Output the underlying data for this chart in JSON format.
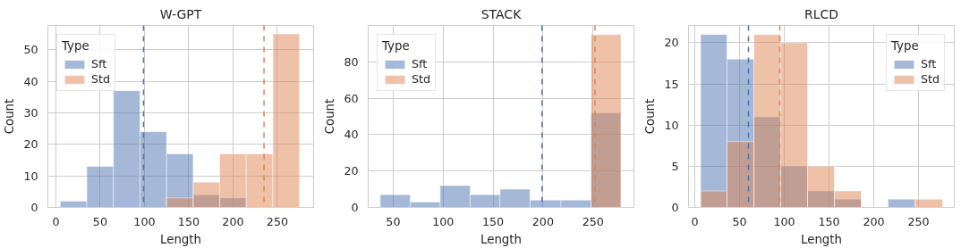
{
  "chart_data": [
    {
      "type": "histogram",
      "title": "W-GPT",
      "xlabel": "Length",
      "ylabel": "Count",
      "legend_title": "Type",
      "bins": [
        5,
        35,
        65,
        95,
        125,
        155,
        185,
        215,
        245,
        275
      ],
      "series": [
        {
          "name": "Sft",
          "color": "#4c72b0",
          "values": [
            2,
            13,
            37,
            24,
            17,
            4,
            3,
            0,
            0
          ]
        },
        {
          "name": "Std",
          "color": "#dd8452",
          "values": [
            0,
            0,
            0,
            0,
            3,
            8,
            17,
            17,
            55
          ]
        }
      ],
      "ref_lines": [
        {
          "axis": "x",
          "value": 99,
          "color": "#4c72b0",
          "line_style": "dashed"
        },
        {
          "axis": "x",
          "value": 235,
          "color": "#dd8452",
          "line_style": "dashed"
        }
      ],
      "xlim": [
        -9,
        291
      ],
      "ylim": [
        0,
        57.7
      ],
      "xticks": [
        0,
        50,
        100,
        150,
        200,
        250
      ],
      "yticks": [
        0,
        10,
        20,
        30,
        40,
        50
      ],
      "grid": true,
      "legend": "top left"
    },
    {
      "type": "histogram",
      "title": "STACK",
      "xlabel": "Length",
      "ylabel": "Count",
      "legend_title": "Type",
      "bins": [
        37,
        67,
        97,
        127,
        157,
        187,
        218,
        248,
        278
      ],
      "series": [
        {
          "name": "Sft",
          "color": "#4c72b0",
          "values": [
            7,
            3,
            12,
            7,
            10,
            4,
            4,
            52
          ]
        },
        {
          "name": "Std",
          "color": "#dd8452",
          "values": [
            0,
            0,
            0,
            0,
            0,
            0,
            0,
            95
          ]
        }
      ],
      "ref_lines": [
        {
          "axis": "x",
          "value": 199,
          "color": "#4c72b0",
          "line_style": "dashed"
        },
        {
          "axis": "x",
          "value": 252,
          "color": "#dd8452",
          "line_style": "dashed"
        }
      ],
      "xlim": [
        25,
        291
      ],
      "ylim": [
        0,
        100
      ],
      "xticks": [
        50,
        100,
        150,
        200,
        250
      ],
      "yticks": [
        0,
        20,
        40,
        60,
        80
      ],
      "grid": true,
      "legend": "top left"
    },
    {
      "type": "histogram",
      "title": "RLCD",
      "xlabel": "Length",
      "ylabel": "Count",
      "legend_title": "Type",
      "bins": [
        6.5,
        36,
        66,
        96,
        126,
        156,
        186,
        216,
        246,
        277
      ],
      "series": [
        {
          "name": "Sft",
          "color": "#4c72b0",
          "values": [
            21,
            18,
            11,
            5,
            2,
            1,
            0,
            1,
            0
          ]
        },
        {
          "name": "Std",
          "color": "#dd8452",
          "values": [
            2,
            8,
            21,
            20,
            5,
            2,
            0,
            0,
            1
          ]
        }
      ],
      "ref_lines": [
        {
          "axis": "x",
          "value": 60,
          "color": "#4c72b0",
          "line_style": "dashed"
        },
        {
          "axis": "x",
          "value": 95,
          "color": "#dd8452",
          "line_style": "dashed"
        }
      ],
      "xlim": [
        -7,
        290
      ],
      "ylim": [
        0,
        22.1
      ],
      "xticks": [
        0,
        50,
        100,
        150,
        200,
        250
      ],
      "yticks": [
        0,
        5,
        10,
        15,
        20
      ],
      "grid": true,
      "legend": "top right"
    }
  ]
}
